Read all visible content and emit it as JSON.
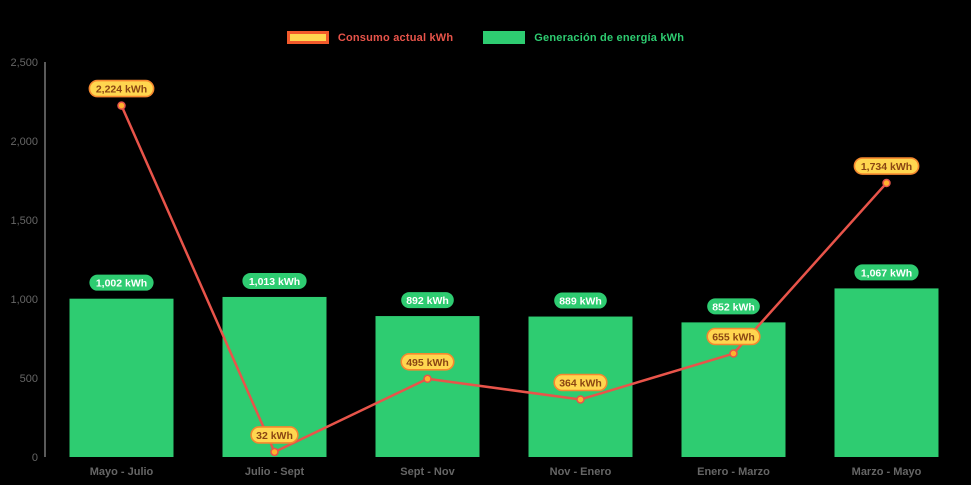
{
  "page": {
    "background": "#000000"
  },
  "legend": {
    "items": [
      {
        "label": "Consumo actual kWh",
        "label_color": "#e8544a",
        "swatch_fill": "#ffd64f",
        "swatch_border": "#f25a2b",
        "series_type": "line"
      },
      {
        "label": "Generación de energía kWh",
        "label_color": "#2ecc71",
        "swatch_fill": "#2ecc71",
        "swatch_border": "#2ecc71",
        "series_type": "bar"
      }
    ]
  },
  "chart_data": {
    "type": "combo bar+line",
    "title": "",
    "categories": [
      "Mayo - Julio",
      "Julio - Sept",
      "Sept - Nov",
      "Nov - Enero",
      "Enero - Marzo",
      "Marzo - Mayo"
    ],
    "series": [
      {
        "name": "Generación de energía kWh",
        "type": "bar",
        "values": [
          1002,
          1013,
          892,
          889,
          852,
          1067
        ],
        "labels": [
          "1,002 kWh",
          "1,013 kWh",
          "892 kWh",
          "889 kWh",
          "852 kWh",
          "1,067 kWh"
        ],
        "color": "#2ecc71",
        "label_bg": "#2ecc71",
        "label_text": "#ffffff"
      },
      {
        "name": "Consumo actual kWh",
        "type": "line",
        "values": [
          2224,
          32,
          495,
          364,
          655,
          1734
        ],
        "labels": [
          "2,224 kWh",
          "32 kWh",
          "495 kWh",
          "364 kWh",
          "655 kWh",
          "1,734 kWh"
        ],
        "color": "#e8544a",
        "marker_fill": "#ffb12e",
        "marker_stroke": "#e8544a",
        "label_bg": "#ffd64f",
        "label_border": "#f5882f",
        "label_text": "#8a4513"
      }
    ],
    "y_axis": {
      "min": 0,
      "max": 2500,
      "tick_interval": 500,
      "tick_labels": [
        "0",
        "500",
        "1,000",
        "1,500",
        "2,000",
        "2,500"
      ]
    },
    "grid": false,
    "legend_position": "top",
    "axis_color": "#666666",
    "category_color": "#666666",
    "axis_line_color": "#b3b3b3",
    "background": "#000000"
  }
}
